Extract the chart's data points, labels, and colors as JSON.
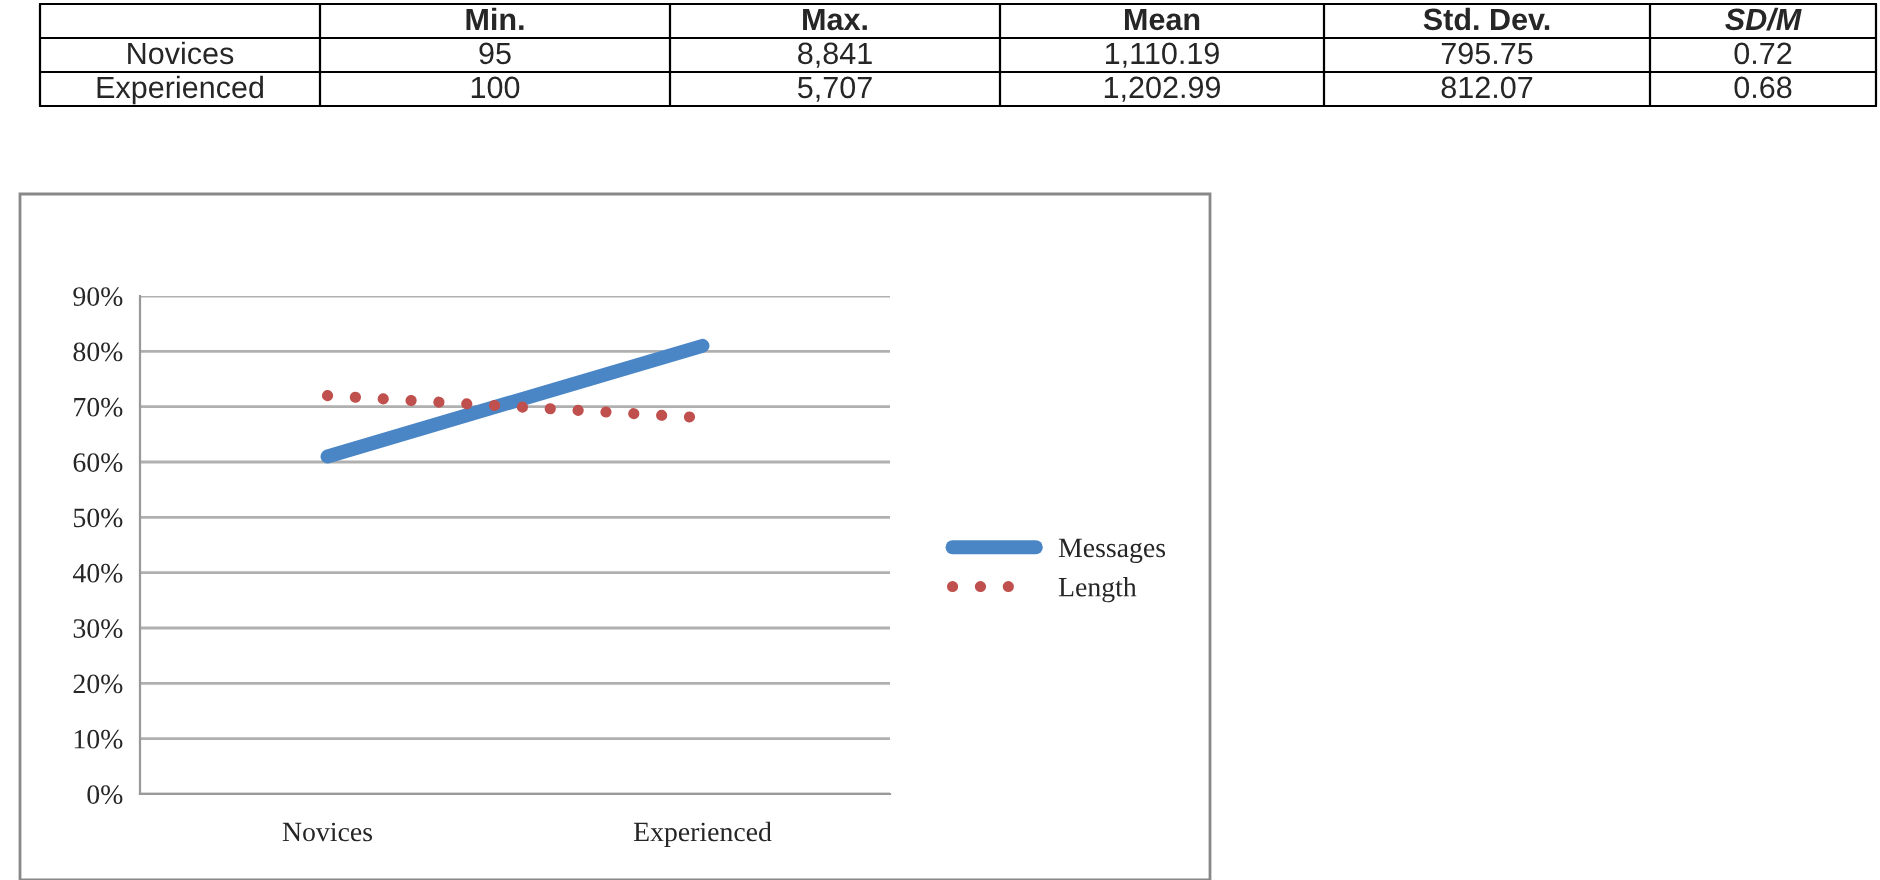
{
  "chart_data": [
    {
      "type": "other",
      "annotations": [
        "Min.",
        "Max.",
        "Mean",
        "Std. Dev.",
        "SD/M",
        "Novices",
        "95",
        "8,841",
        "1,110.19",
        "795.75",
        "0.72",
        "Experienced",
        "100",
        "5,707",
        "1,202.99",
        "812.07",
        "0.68"
      ]
    },
    {
      "type": "line",
      "categories": [
        "Novices",
        "Experienced"
      ],
      "series": [
        {
          "name": "Messages",
          "color": "#4a86c5",
          "values": [
            61,
            81
          ],
          "line_style": "solid"
        },
        {
          "name": "Length",
          "color": "#c0504d",
          "values": [
            72,
            68
          ],
          "line_style": "dotted"
        }
      ],
      "ylim": [
        0,
        90
      ],
      "yticks": [
        {
          "value": 0,
          "label": "0%"
        },
        {
          "value": 10,
          "label": "10%"
        },
        {
          "value": 20,
          "label": "20%"
        },
        {
          "value": 30,
          "label": "30%"
        },
        {
          "value": 40,
          "label": "40%"
        },
        {
          "value": 50,
          "label": "50%"
        },
        {
          "value": 60,
          "label": "60%"
        },
        {
          "value": 70,
          "label": "70%"
        },
        {
          "value": 80,
          "label": "80%"
        },
        {
          "value": 90,
          "label": "90%"
        }
      ],
      "grid": "y",
      "legend": "right"
    }
  ]
}
